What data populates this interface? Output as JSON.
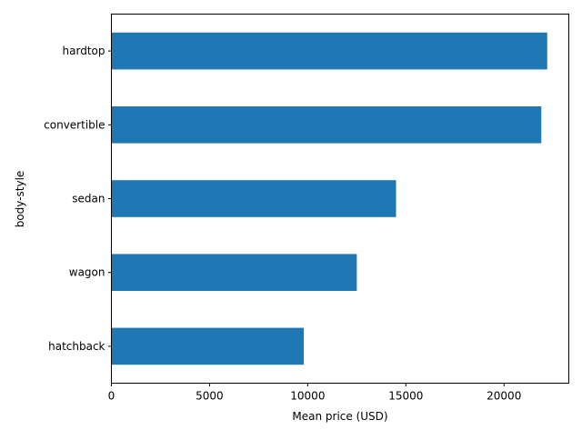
{
  "chart_data": {
    "type": "bar",
    "orientation": "horizontal",
    "title": "",
    "xlabel": "Mean price (USD)",
    "ylabel": "body-style",
    "categories": [
      "hatchback",
      "wagon",
      "sedan",
      "convertible",
      "hardtop"
    ],
    "values": [
      9800,
      12500,
      14500,
      21900,
      22200
    ],
    "xlim": [
      0,
      23300
    ],
    "xticks": [
      0,
      5000,
      10000,
      15000,
      20000
    ],
    "xtick_labels": [
      "0",
      "5000",
      "10000",
      "15000",
      "20000"
    ],
    "grid": false,
    "legend": "none",
    "bar_color": "#1f77b4"
  }
}
